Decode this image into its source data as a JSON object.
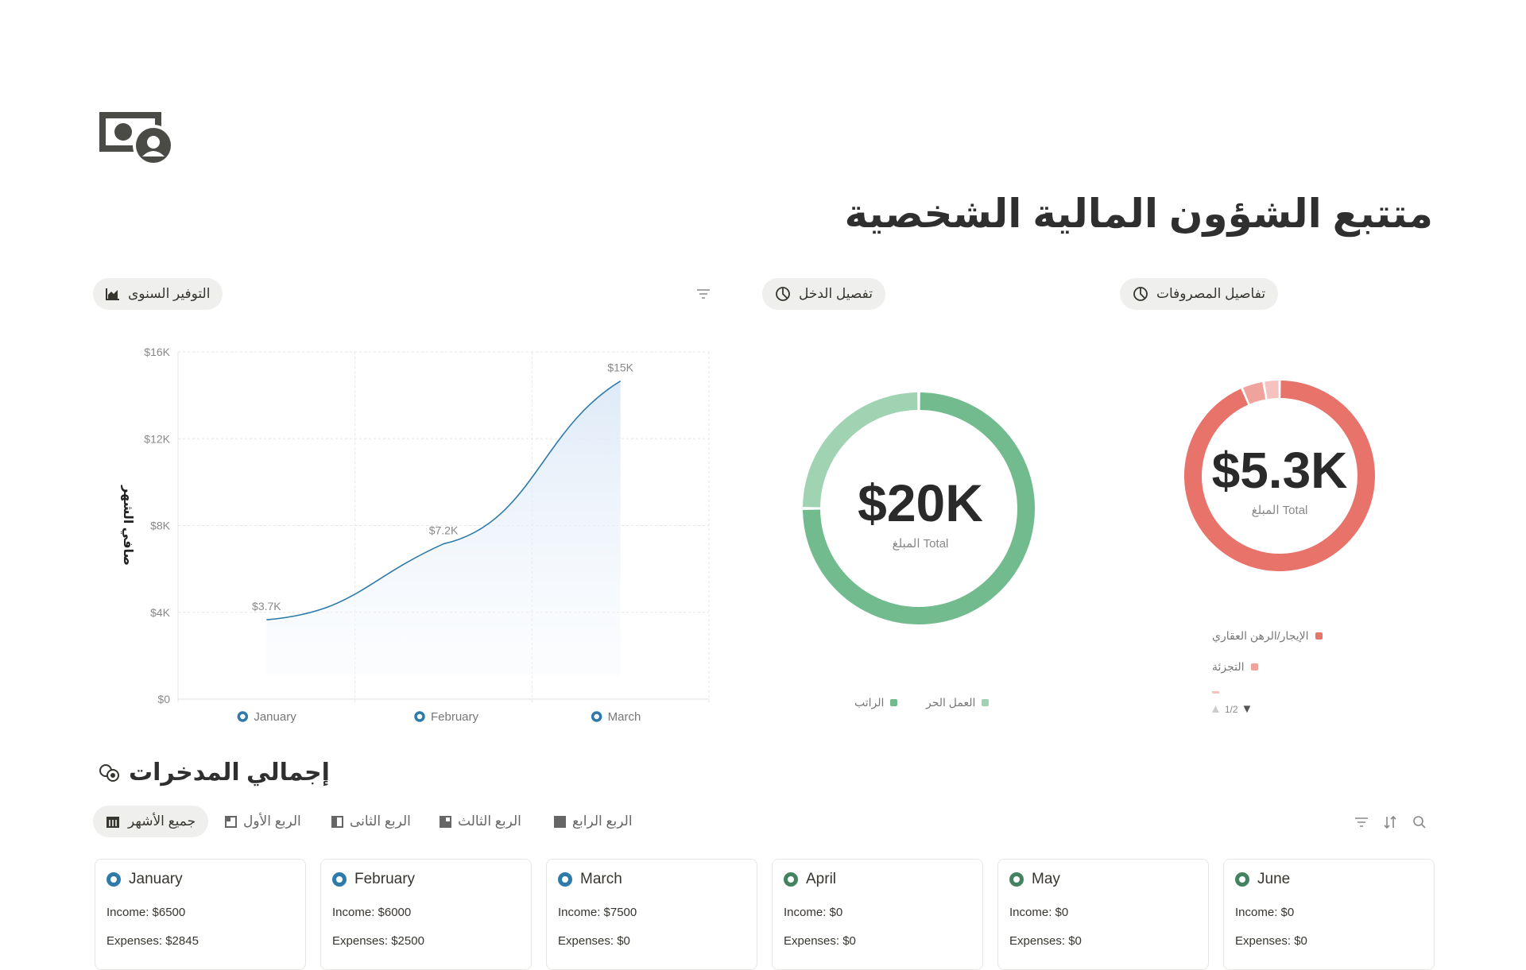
{
  "page": {
    "title": "متتبع الشؤون المالية الشخصية",
    "icon": "money-bill-icon"
  },
  "savings_chart": {
    "button_label": "التوفير السنوى",
    "button_icon": "area-chart-icon",
    "filter_icon": "filter-icon",
    "chart_data": {
      "type": "area",
      "categories": [
        "January",
        "February",
        "March"
      ],
      "values": [
        3655,
        7155,
        14655
      ],
      "data_labels": [
        "$3.7K",
        "$7.2K",
        "$15K"
      ],
      "ylabel": "صافي الشهر",
      "ylim": [
        0,
        16000
      ],
      "yticks": [
        "$0",
        "$4K",
        "$8K",
        "$12K",
        "$16K"
      ],
      "grid": true,
      "color": "#2e7bab"
    }
  },
  "income_chart": {
    "button_label": "تفصيل الدخل",
    "button_icon": "pie-chart-icon",
    "chart_data": {
      "type": "pie",
      "total_label": "$20K",
      "sub_label": "المبلغ Total",
      "series": [
        {
          "name": "الراتب",
          "value": 15000,
          "color": "#72bb8e"
        },
        {
          "name": "العمل الحر",
          "value": 5000,
          "color": "#9fd3b1"
        }
      ],
      "legend": "bottom"
    }
  },
  "expense_chart": {
    "button_label": "تفاصيل المصروفات",
    "button_icon": "pie-chart-icon",
    "chart_data": {
      "type": "pie",
      "total_label": "$5.3K",
      "sub_label": "المبلغ Total",
      "series": [
        {
          "name": "الإيجار/الرهن العقاري",
          "value": 5000,
          "color": "#e8736b"
        },
        {
          "name": "التجزئة",
          "value": 200,
          "color": "#f0a39c"
        },
        {
          "value": 145,
          "color": "#f5c3bf"
        }
      ],
      "legend": "bottom",
      "legend_page": "1/2"
    }
  },
  "savings_section": {
    "heading": "إجمالي المدخرات",
    "tabs": [
      {
        "label": "جميع الأشهر",
        "active": true
      },
      {
        "label": "الربع الأول"
      },
      {
        "label": "الربع الثانى"
      },
      {
        "label": "الربع الثالث"
      },
      {
        "label": "الربع الرابع"
      }
    ],
    "cards": [
      {
        "month": "January",
        "income": "Income: $6500",
        "expenses": "Expenses: $2845",
        "color": "#2e7bab"
      },
      {
        "month": "February",
        "income": "Income: $6000",
        "expenses": "Expenses: $2500",
        "color": "#2e7bab"
      },
      {
        "month": "March",
        "income": "Income: $7500",
        "expenses": "Expenses: $0",
        "color": "#2e7bab"
      },
      {
        "month": "April",
        "income": "Income: $0",
        "expenses": "Expenses: $0",
        "color": "#448361"
      },
      {
        "month": "May",
        "income": "Income: $0",
        "expenses": "Expenses: $0",
        "color": "#448361"
      },
      {
        "month": "June",
        "income": "Income: $0",
        "expenses": "Expenses: $0",
        "color": "#448361"
      }
    ]
  }
}
